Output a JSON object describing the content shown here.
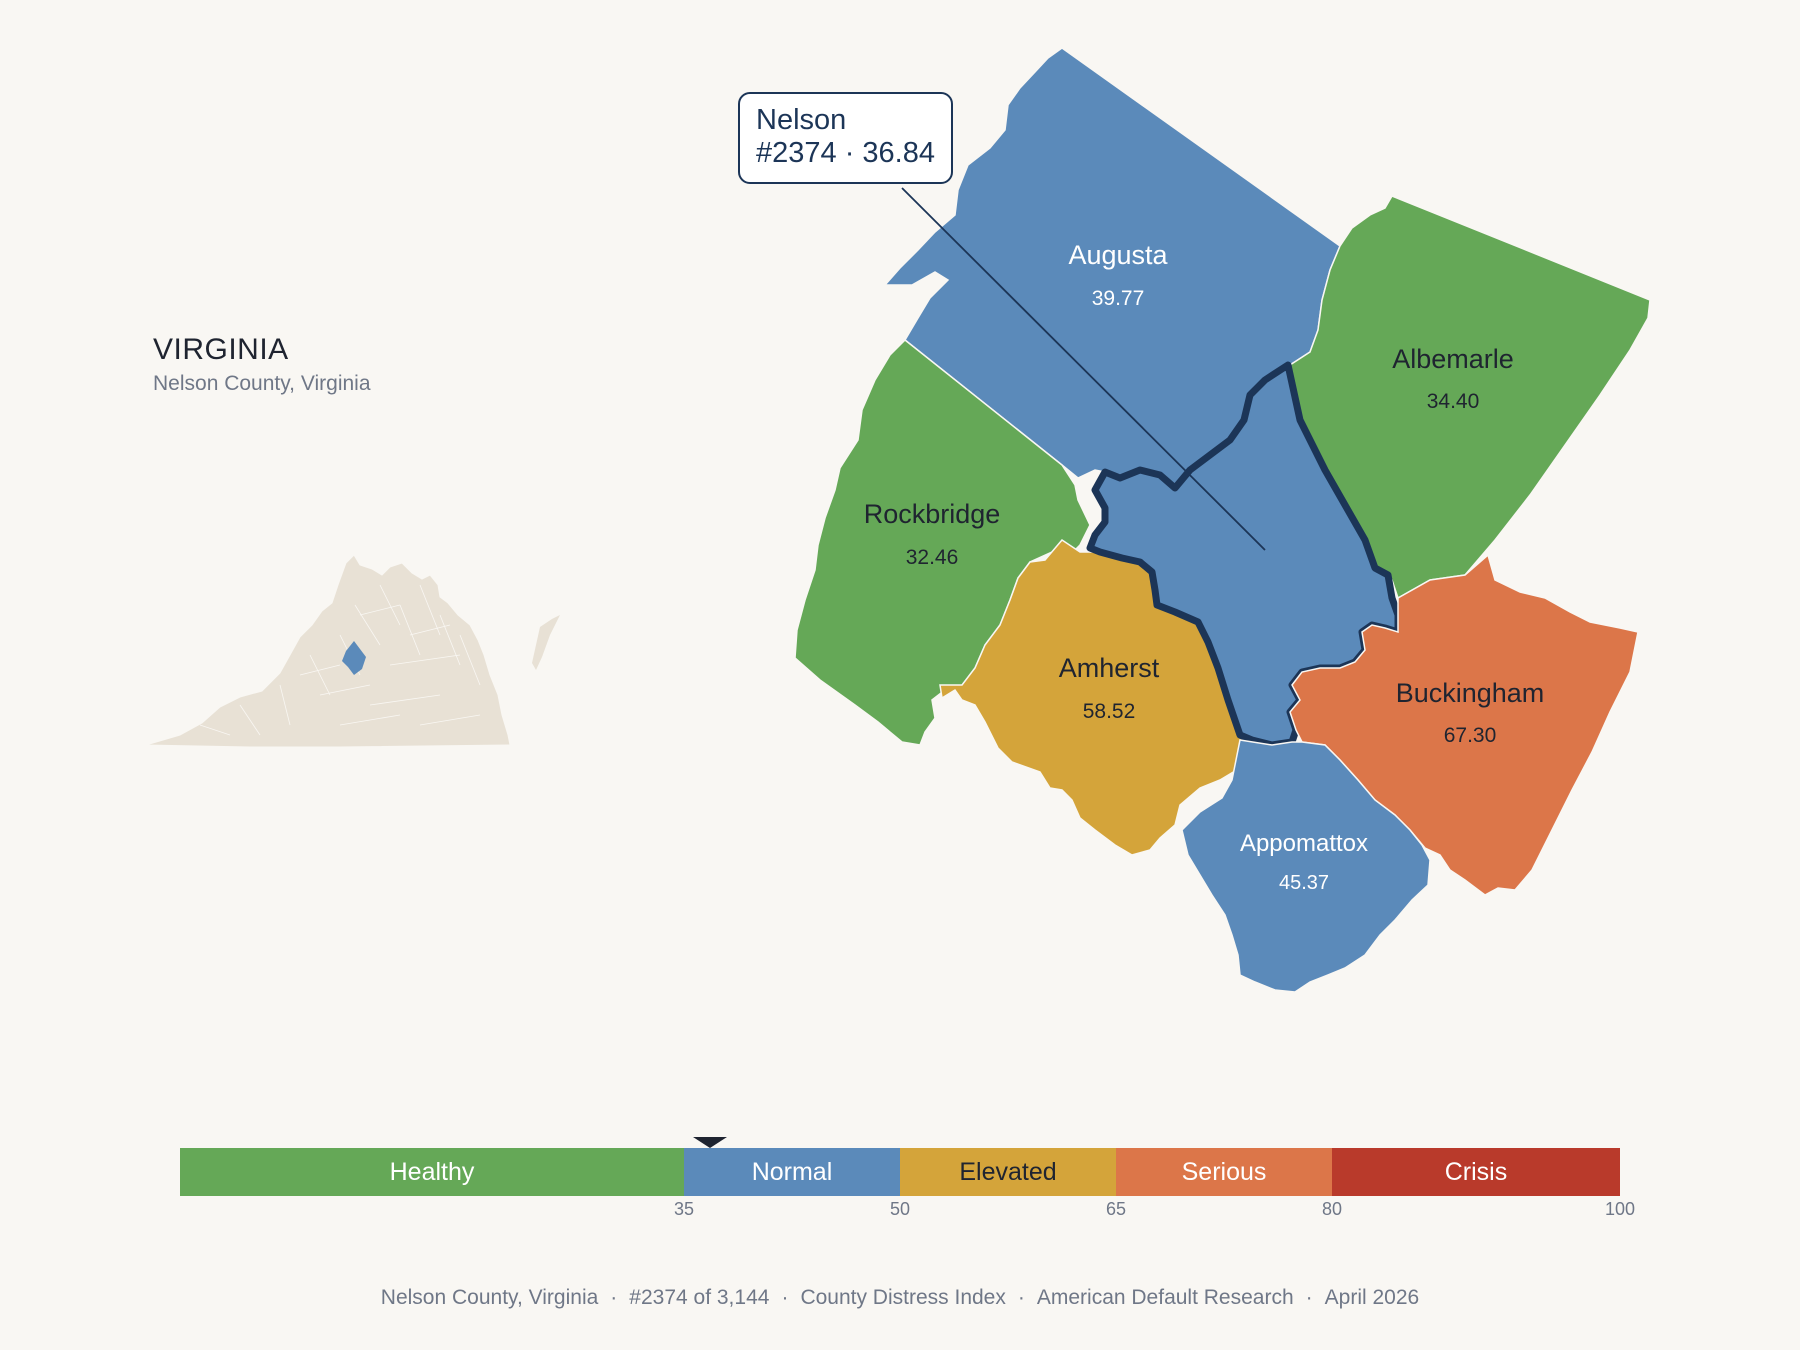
{
  "header": {
    "state_title": "VIRGINIA",
    "subtitle": "Nelson County, Virginia"
  },
  "callout": {
    "county": "Nelson",
    "rank_score": "#2374 · 36.84"
  },
  "counties": [
    {
      "name": "Augusta",
      "value": "39.77",
      "category": "Normal"
    },
    {
      "name": "Albemarle",
      "value": "34.40",
      "category": "Healthy"
    },
    {
      "name": "Rockbridge",
      "value": "32.46",
      "category": "Healthy"
    },
    {
      "name": "Amherst",
      "value": "58.52",
      "category": "Elevated"
    },
    {
      "name": "Buckingham",
      "value": "67.30",
      "category": "Serious"
    },
    {
      "name": "Appomattox",
      "value": "45.37",
      "category": "Normal"
    },
    {
      "name": "Nelson",
      "value": "36.84",
      "category": "Normal",
      "highlighted": true
    }
  ],
  "legend": {
    "segments": [
      {
        "label": "Healthy",
        "from": 0,
        "to": 35,
        "color": "#65a857"
      },
      {
        "label": "Normal",
        "from": 35,
        "to": 50,
        "color": "#5b8aba"
      },
      {
        "label": "Elevated",
        "from": 50,
        "to": 65,
        "color": "#d4a43a"
      },
      {
        "label": "Serious",
        "from": 65,
        "to": 80,
        "color": "#dc7649"
      },
      {
        "label": "Crisis",
        "from": 80,
        "to": 100,
        "color": "#b93a2b"
      }
    ],
    "ticks": [
      "35",
      "50",
      "65",
      "80",
      "100"
    ],
    "marker_value": 36.84
  },
  "colors": {
    "background": "#f9f7f3",
    "highlight_outline": "#1c3557",
    "inset_fill": "#e8e1d5",
    "inset_highlight": "#5b8aba"
  },
  "footer": {
    "county": "Nelson County, Virginia",
    "rank": "#2374 of 3,144",
    "index": "County Distress Index",
    "source": "American Default Research",
    "date": "April 2026"
  }
}
